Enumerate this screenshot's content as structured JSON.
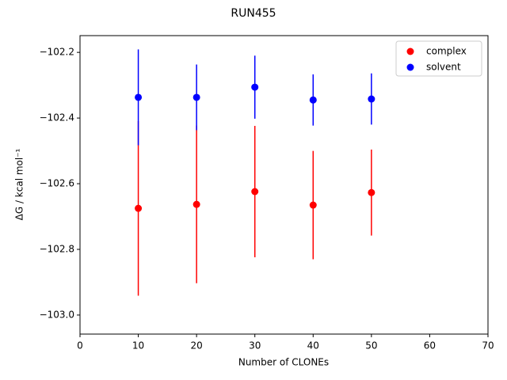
{
  "chart_data": {
    "type": "scatter",
    "title": "RUN455",
    "x_label": "Number of CLONEs",
    "y_label": "ΔG / kcal mol⁻¹",
    "x": [
      10,
      20,
      30,
      40,
      50
    ],
    "series": [
      {
        "name": "complex",
        "color": "#ff0000",
        "values": [
          -102.675,
          -102.663,
          -102.624,
          -102.665,
          -102.627
        ],
        "errors": [
          0.266,
          0.24,
          0.2,
          0.165,
          0.131
        ]
      },
      {
        "name": "solvent",
        "color": "#0000ff",
        "values": [
          -102.337,
          -102.337,
          -102.306,
          -102.345,
          -102.342
        ],
        "errors": [
          0.146,
          0.1,
          0.096,
          0.078,
          0.078
        ]
      }
    ],
    "xlim": [
      0,
      70
    ],
    "xticks": [
      0,
      10,
      20,
      30,
      40,
      50,
      60,
      70
    ],
    "ylim": [
      -103.058,
      -102.149
    ],
    "yticks": [
      {
        "value": -103.0,
        "label": "−103.0"
      },
      {
        "value": -102.8,
        "label": "−102.8"
      },
      {
        "value": -102.6,
        "label": "−102.6"
      },
      {
        "value": -102.4,
        "label": "−102.4"
      },
      {
        "value": -102.2,
        "label": "−102.2"
      }
    ],
    "legend": "upper right"
  }
}
